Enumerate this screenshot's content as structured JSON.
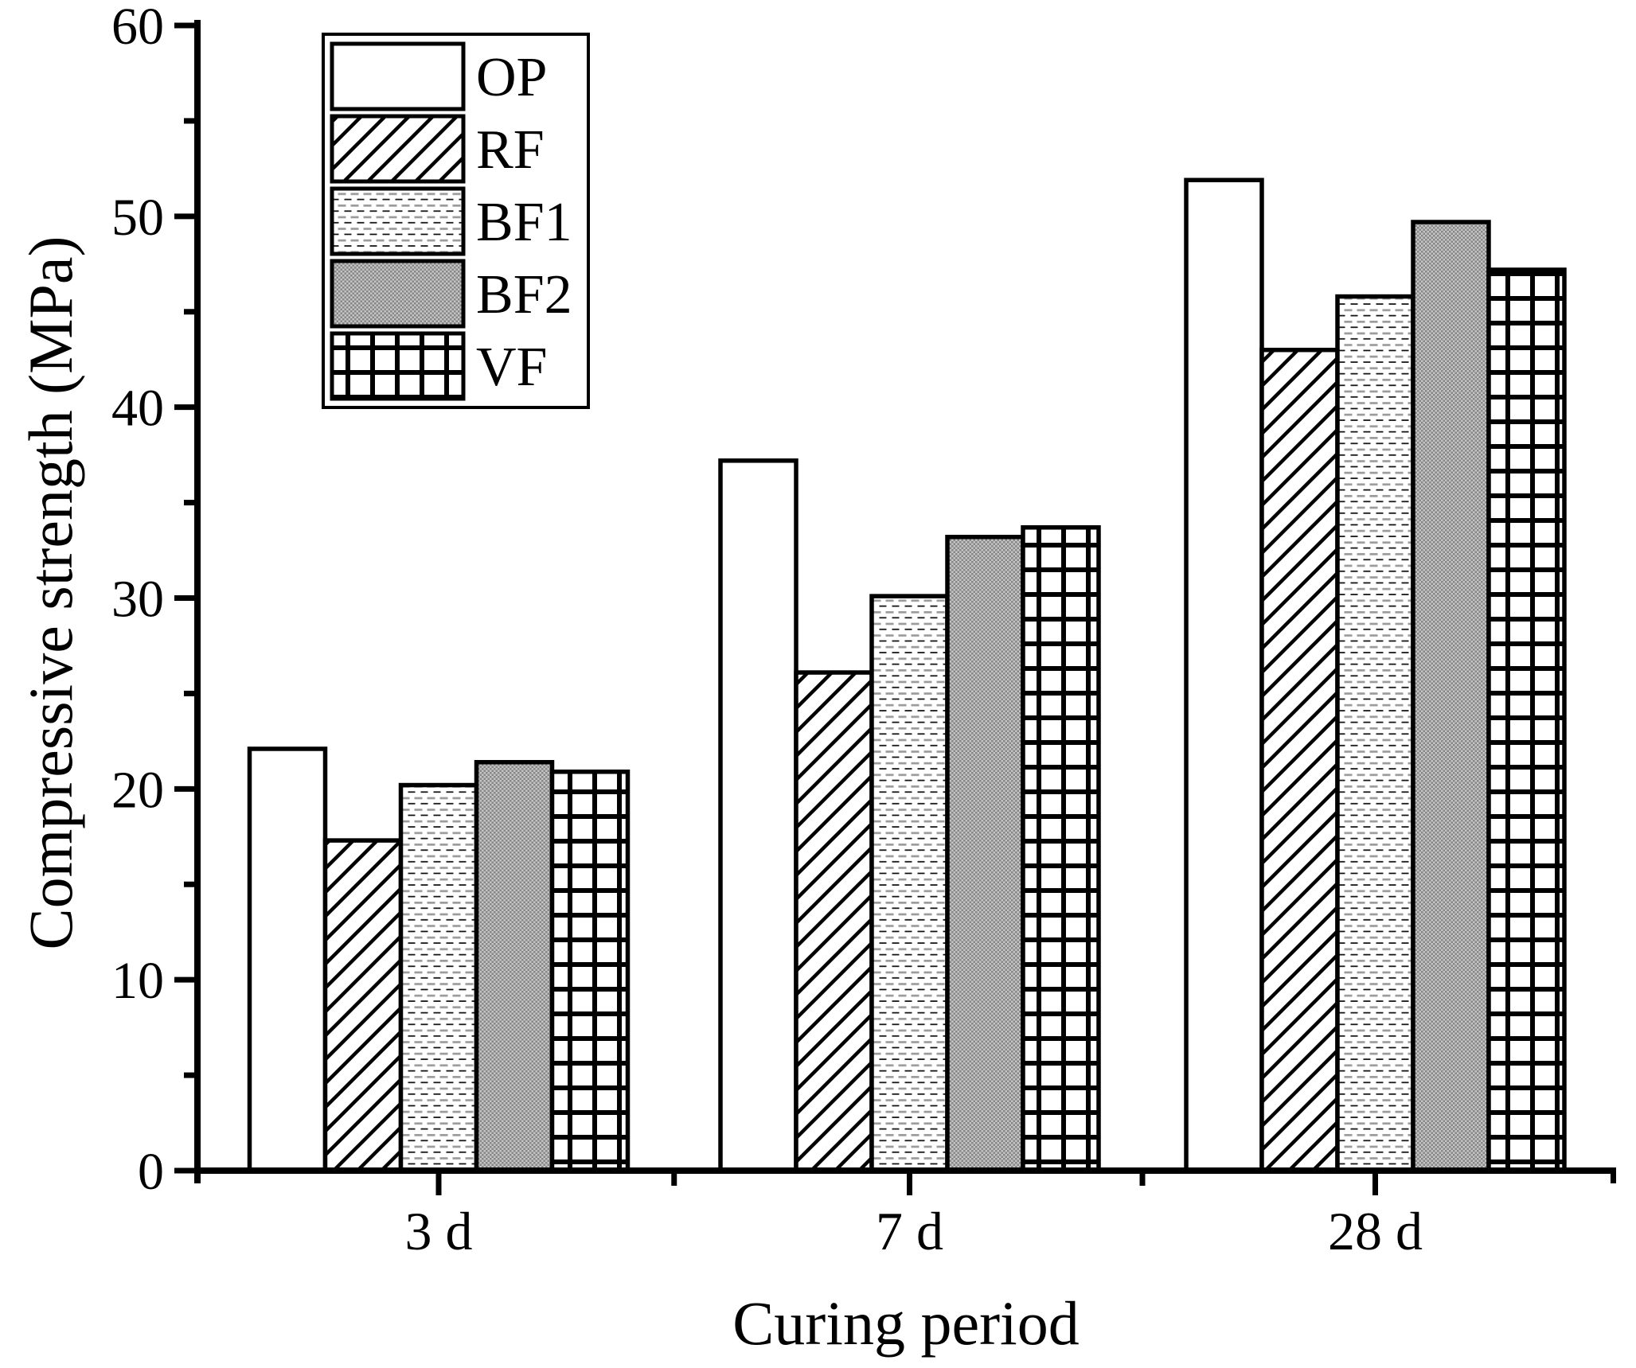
{
  "chart_data": {
    "type": "bar",
    "title": "",
    "xlabel": "Curing period",
    "ylabel": "Compressive strength (MPa)",
    "categories": [
      "3 d",
      "7 d",
      "28 d"
    ],
    "series": [
      {
        "name": "OP",
        "pattern": "plain-white",
        "values": [
          22.1,
          37.2,
          51.9
        ]
      },
      {
        "name": "RF",
        "pattern": "diagonal-hatch",
        "values": [
          17.3,
          26.1,
          43.0
        ]
      },
      {
        "name": "BF1",
        "pattern": "dash-dot-rows",
        "values": [
          20.2,
          30.1,
          45.8
        ]
      },
      {
        "name": "BF2",
        "pattern": "gray-checker",
        "values": [
          21.4,
          33.2,
          49.7
        ]
      },
      {
        "name": "VF",
        "pattern": "grid",
        "values": [
          20.9,
          33.7,
          47.2
        ]
      }
    ],
    "ylim": [
      0,
      60
    ],
    "y_major_ticks": [
      0,
      10,
      20,
      30,
      40,
      50,
      60
    ],
    "y_minor_ticks": [
      5,
      15,
      25,
      35,
      45,
      55
    ],
    "grid": false,
    "legend_position": "upper-left",
    "colors": {
      "foreground": "#000000",
      "background": "#ffffff",
      "bf2_gray_light": "#c4c4c4",
      "bf2_gray_dark": "#878787",
      "bf1_dash_gray": "#9b9b9b"
    }
  }
}
